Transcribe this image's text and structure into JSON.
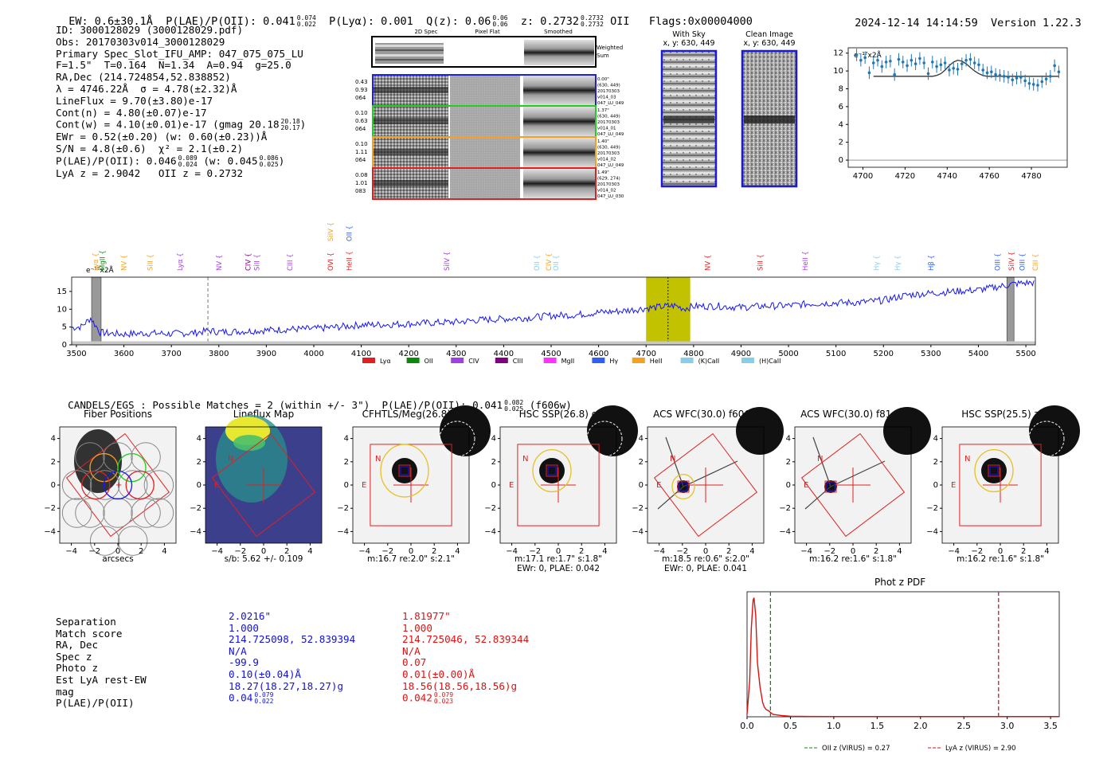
{
  "header": {
    "ew": "EW: 0.6±30.1Å",
    "plae": "P(LAE)/P(OII): 0.041",
    "plae_hi": "0.074",
    "plae_lo": "0.022",
    "plya": "P(Lyα): 0.001",
    "qz": "Q(z): 0.06",
    "qz_hi": "0.06",
    "qz_lo": "0.06",
    "z": "z: 0.2732",
    "z_hi": "0.2732",
    "z_lo": "0.2732",
    "z_line": "OII",
    "flags": "Flags:0x00004000",
    "timestamp": "2024-12-14 14:14:59",
    "version": "Version 1.22.3"
  },
  "info": {
    "id": "ID: 3000128029 (3000128029.pdf)",
    "obs": "Obs: 20170303v014_3000128029",
    "primary": "Primary Spec_Slot_IFU_AMP: 047_075_075_LU",
    "fwhm": "F=1.5\"  T=0.164  N=1.34  A=0.94  g=25.0",
    "radec": "RA,Dec (214.724854,52.838852)",
    "lambda": "λ = 4746.22Å  σ = 4.78(±2.32)Å",
    "lineflux": "LineFlux = 9.70(±3.80)e-17",
    "contn": "Cont(n) = 4.80(±0.07)e-17",
    "contw": "Cont(w) = 4.10(±0.01)e-17 (gmag 20.18",
    "contw_hi": "20.18",
    "contw_lo": "20.17",
    "ewr": "EWr = 0.52(±0.20) (w: 0.60(±0.23))Å",
    "sn": "S/N = 4.8(±0.6)  χ² = 2.1(±0.2)",
    "plae": "P(LAE)/P(OII): 0.046",
    "plae_hi": "0.089",
    "plae_lo": "0.024",
    "plae_w": "(w: 0.045",
    "plae_w_hi": "0.086",
    "plae_w_lo": "0.025",
    "lyaz": "LyA z = 2.9042   OII z = 0.2732"
  },
  "spec2d": {
    "col_titles": [
      "2D Spec",
      "Pixel Flat",
      "Smoothed"
    ],
    "weighted_label": "Weighted Sum",
    "rows": [
      {
        "left": [
          "0.43",
          "0.93",
          "064"
        ],
        "right": [
          "0.00\"",
          "(630, 449)",
          "20170303",
          "v014_03",
          "047_LU_049"
        ],
        "color": "#1f1fdc"
      },
      {
        "left": [
          "0.10",
          "0.63",
          "064"
        ],
        "right": [
          "1.37\"",
          "(630, 449)",
          "20170303",
          "v014_01",
          "047_LU_049"
        ],
        "color": "#22cc22"
      },
      {
        "left": [
          "0.10",
          "1.11",
          "064"
        ],
        "right": [
          "1.40\"",
          "(630, 449)",
          "20170303",
          "v014_02",
          "047_LU_049"
        ],
        "color": "#f5a020"
      },
      {
        "left": [
          "0.08",
          "1.01",
          "083"
        ],
        "right": [
          "1.49\"",
          "(629, 274)",
          "20170303",
          "v014_02",
          "047_LU_030"
        ],
        "color": "#e02020"
      }
    ]
  },
  "sky": {
    "with_sky_title": "With Sky",
    "with_sky_xy": "x, y: 630, 449",
    "clean_title": "Clean Image",
    "clean_xy": "x, y: 630, 449"
  },
  "zoom_plot": {
    "unit_label": "e⁻¹⁷x2Å",
    "chart_data": {
      "type": "scatter",
      "x": [
        4697,
        4699,
        4701,
        4703,
        4705,
        4707,
        4709,
        4711,
        4713,
        4715,
        4717,
        4719,
        4721,
        4723,
        4725,
        4727,
        4729,
        4731,
        4733,
        4735,
        4737,
        4739,
        4741,
        4743,
        4745,
        4747,
        4749,
        4751,
        4753,
        4755,
        4757,
        4759,
        4761,
        4763,
        4765,
        4767,
        4769,
        4771,
        4773,
        4775,
        4777,
        4779,
        4781,
        4783,
        4785,
        4787,
        4789,
        4791,
        4793
      ],
      "y": [
        11.8,
        11.2,
        11.5,
        9.8,
        10.9,
        11.2,
        10.5,
        11.0,
        11.1,
        9.6,
        11.3,
        11.0,
        10.6,
        11.2,
        10.8,
        11.4,
        10.9,
        9.7,
        11.0,
        10.5,
        10.7,
        10.9,
        10.1,
        10.3,
        10.2,
        10.8,
        11.2,
        11.3,
        10.9,
        10.7,
        10.1,
        9.8,
        9.9,
        9.6,
        9.5,
        9.4,
        9.3,
        9.0,
        9.2,
        9.3,
        8.9,
        8.6,
        8.5,
        8.4,
        8.8,
        9.1,
        9.4,
        10.6,
        9.9
      ],
      "fit_y": [
        9.4,
        9.4,
        9.4,
        9.4,
        9.4,
        9.4,
        9.4,
        9.4,
        9.4,
        9.4,
        9.4,
        9.4,
        9.4,
        9.4,
        9.4,
        9.4,
        9.4,
        9.4,
        9.4,
        9.5,
        9.7,
        10.1,
        10.6,
        11.0,
        11.2,
        11.1,
        10.8,
        10.4,
        10.0,
        9.7,
        9.5,
        9.4,
        9.4,
        9.4,
        9.4,
        9.4,
        9.4,
        9.4,
        9.4,
        9.4,
        9.4,
        9.4,
        9.4,
        9.4,
        9.4,
        9.4,
        9.4,
        9.4,
        9.4
      ],
      "xlim": [
        4693,
        4797
      ],
      "ylim": [
        -0.8,
        12.6
      ],
      "xticks": [
        4700,
        4720,
        4740,
        4760,
        4780
      ],
      "yticks": [
        0,
        2,
        4,
        6,
        8,
        10,
        12
      ]
    }
  },
  "full_spectrum": {
    "unit_label": "e⁻¹⁷x2Å",
    "chart_data": {
      "type": "line",
      "xlim": [
        3490,
        5520
      ],
      "ylim": [
        0,
        19
      ],
      "xticks": [
        3500,
        3600,
        3700,
        3800,
        3900,
        4000,
        4100,
        4200,
        4300,
        4400,
        4500,
        4600,
        4700,
        4800,
        4900,
        5000,
        5100,
        5200,
        5300,
        5400,
        5500
      ],
      "yticks": [
        0,
        5,
        10,
        15
      ],
      "x": [
        3490,
        3510,
        3530,
        3550,
        3570,
        3600,
        3650,
        3700,
        3750,
        3780,
        3800,
        3850,
        3900,
        3950,
        4000,
        4050,
        4100,
        4150,
        4200,
        4250,
        4300,
        4350,
        4400,
        4450,
        4500,
        4550,
        4600,
        4650,
        4700,
        4720,
        4740,
        4760,
        4780,
        4800,
        4850,
        4900,
        4950,
        5000,
        5050,
        5100,
        5150,
        5200,
        5250,
        5300,
        5350,
        5400,
        5450,
        5470,
        5490,
        5520
      ],
      "y": [
        4.8,
        5.1,
        7.5,
        3.5,
        3.2,
        3.0,
        3.3,
        3.1,
        3.4,
        4.0,
        3.6,
        3.8,
        4.1,
        4.4,
        4.5,
        5.0,
        5.6,
        5.7,
        5.9,
        6.2,
        6.4,
        7.0,
        7.3,
        7.6,
        8.2,
        8.4,
        9.1,
        9.5,
        10.3,
        10.5,
        10.8,
        11.0,
        10.2,
        10.8,
        10.9,
        10.5,
        10.9,
        11.0,
        11.6,
        11.8,
        11.9,
        12.5,
        14.0,
        14.5,
        15.0,
        15.4,
        16.5,
        17.0,
        17.3,
        17.5
      ],
      "highlight_range": [
        4700,
        4793
      ],
      "line_marker": 4746.22,
      "dashed_marker": 3777,
      "masked_ranges": [
        [
          3532,
          3552
        ],
        [
          5460,
          5475
        ]
      ],
      "lines": [
        {
          "name": "Lyα",
          "x": 3540,
          "color": "#f5a020"
        },
        {
          "name": "MgII",
          "x": 3555,
          "color": "#0a8a0a"
        },
        {
          "name": "NV",
          "x": 3600,
          "color": "#f5a020"
        },
        {
          "name": "SiII",
          "x": 3655,
          "color": "#f5a020"
        },
        {
          "name": "Lyα",
          "x": 3718,
          "color": "#a040e0"
        },
        {
          "name": "NV",
          "x": 3800,
          "color": "#a040e0"
        },
        {
          "name": "CIV",
          "x": 3862,
          "color": "#800080"
        },
        {
          "name": "SiII",
          "x": 3880,
          "color": "#a040e0"
        },
        {
          "name": "CIII",
          "x": 3950,
          "color": "#a040e0"
        },
        {
          "name": "OVI",
          "x": 4035,
          "color": "#e02020"
        },
        {
          "name": "SiIV",
          "x": 4035,
          "color": "#f5a020"
        },
        {
          "name": "HeII",
          "x": 4075,
          "color": "#e02020"
        },
        {
          "name": "OII",
          "x": 4075,
          "color": "#3060f0"
        },
        {
          "name": "SiIV",
          "x": 4280,
          "color": "#a040e0"
        },
        {
          "name": "OII",
          "x": 4470,
          "color": "#87ceeb"
        },
        {
          "name": "CIV",
          "x": 4495,
          "color": "#f5a020"
        },
        {
          "name": "OII",
          "x": 4510,
          "color": "#87ceeb"
        },
        {
          "name": "NV",
          "x": 4830,
          "color": "#e02020"
        },
        {
          "name": "SiII",
          "x": 4940,
          "color": "#e02020"
        },
        {
          "name": "HeII",
          "x": 5035,
          "color": "#a040e0"
        },
        {
          "name": "Hγ",
          "x": 5185,
          "color": "#87ceeb"
        },
        {
          "name": "Hγ",
          "x": 5230,
          "color": "#87ceeb"
        },
        {
          "name": "Hβ",
          "x": 5300,
          "color": "#3060f0"
        },
        {
          "name": "OIII",
          "x": 5440,
          "color": "#3060f0"
        },
        {
          "name": "SiIV",
          "x": 5470,
          "color": "#e02020"
        },
        {
          "name": "OIII",
          "x": 5492,
          "color": "#3060f0"
        },
        {
          "name": "CIII",
          "x": 5520,
          "color": "#f5a020"
        }
      ],
      "legend": [
        {
          "name": "Lyα",
          "color": "#e02020"
        },
        {
          "name": "OII",
          "color": "#0a8a0a"
        },
        {
          "name": "CIV",
          "color": "#a040e0"
        },
        {
          "name": "CIII",
          "color": "#800080"
        },
        {
          "name": "MgII",
          "color": "#ff33ff"
        },
        {
          "name": "Hγ",
          "color": "#3060f0"
        },
        {
          "name": "HeII",
          "color": "#f5a020"
        },
        {
          "name": "(K)CaII",
          "color": "#87ceeb"
        },
        {
          "name": "(H)CaII",
          "color": "#87ceeb"
        }
      ]
    }
  },
  "catalog": {
    "line": "CANDELS/EGS : Possible Matches = 2 (within +/- 3\")  P(LAE)/P(OII): 0.041",
    "hi": "0.082",
    "lo": "0.025",
    "filter": "(f606w)"
  },
  "cutouts": [
    {
      "title": "Fiber Positions",
      "xlabel": "arcsecs",
      "sub": "",
      "sub2": ""
    },
    {
      "title": "Lineflux Map",
      "xlabel": "s/b: 5.62 +/- 0.109",
      "sub": "",
      "sub2": ""
    },
    {
      "title": "CFHTLS/Meg(26.8) u",
      "xlabel": "m:16.7  re:2.0\"  s:2.1\"",
      "sub": "",
      "sub2": ""
    },
    {
      "title": "HSC SSP(26.8) g",
      "xlabel": "m:17.1  re:1.7\"  s:1.8\"",
      "sub": "EWr: 0, PLAE: 0.042",
      "sub2": ""
    },
    {
      "title": "ACS WFC(30.0) f606w",
      "xlabel": "m:18.5  re:0.6\"  s:2.0\"",
      "sub": "EWr: 0, PLAE: 0.041",
      "sub2": ""
    },
    {
      "title": "ACS WFC(30.0) f814w",
      "xlabel": "m:16.2  re:1.6\"  s:1.8\"",
      "sub": "",
      "sub2": ""
    },
    {
      "title": "HSC SSP(25.5) z",
      "xlabel": "m:16.2  re:1.6\"  s:1.8\"",
      "sub": "",
      "sub2": ""
    }
  ],
  "cutout_axis": {
    "ticks": [
      "−4",
      "−2",
      "0",
      "2",
      "4"
    ],
    "marker_N": "N",
    "marker_E": "E"
  },
  "matches": {
    "labels": [
      "Separation",
      "Match score",
      "RA, Dec",
      "Spec z",
      "Photo z",
      "Est LyA rest-EW",
      "mag",
      "P(LAE)/P(OII)"
    ],
    "blue": [
      "2.0216\"",
      "1.000",
      "214.725098, 52.839394",
      "N/A",
      "-99.9",
      "0.10(±0.04)Å",
      "18.27(18.27,18.27)g",
      "0.04"
    ],
    "blue_plae_hi": "0.079",
    "blue_plae_lo": "0.022",
    "red": [
      "1.81977\"",
      "1.000",
      "214.725046, 52.839344",
      "N/A",
      "0.07",
      "0.01(±0.00)Å",
      "18.56(18.56,18.56)g",
      "0.042"
    ],
    "red_plae_hi": "0.079",
    "red_plae_lo": "0.023",
    "blue_color": "#1010e0",
    "red_color": "#e01010"
  },
  "photz": {
    "title": "Phot z PDF",
    "chart_data": {
      "type": "line",
      "xlim": [
        0,
        3.6
      ],
      "ylim": [
        0,
        1.05
      ],
      "xticks": [
        0.0,
        0.5,
        1.0,
        1.5,
        2.0,
        2.5,
        3.0,
        3.5
      ],
      "xtick_labels": [
        "0.0",
        "0.5",
        "1.0",
        "1.5",
        "2.0",
        "2.5",
        "3.0",
        "3.5"
      ],
      "x": [
        0.0,
        0.03,
        0.05,
        0.07,
        0.08,
        0.1,
        0.12,
        0.15,
        0.18,
        0.2,
        0.22,
        0.25,
        0.28,
        0.3,
        0.35,
        0.4,
        0.5,
        0.7,
        1.0,
        1.5,
        2.0,
        2.5,
        3.0,
        3.6
      ],
      "y": [
        0.02,
        0.3,
        0.75,
        0.98,
        1.0,
        0.85,
        0.45,
        0.25,
        0.12,
        0.08,
        0.06,
        0.05,
        0.03,
        0.02,
        0.015,
        0.01,
        0.005,
        0.003,
        0.002,
        0.002,
        0.002,
        0.002,
        0.002,
        0.002
      ],
      "oii_z": 0.27,
      "lya_z": 2.9,
      "legend": [
        "OII z (VIRUS) = 0.27",
        "LyA z (VIRUS) = 2.90"
      ]
    }
  },
  "colors": {
    "blue": "#1515ff",
    "green": "#22cc22",
    "orange": "#f5a020",
    "red": "#e02020",
    "yellow": "#e8c020",
    "highlight": "#c2c200",
    "zoom_point": "#1f77b4"
  }
}
